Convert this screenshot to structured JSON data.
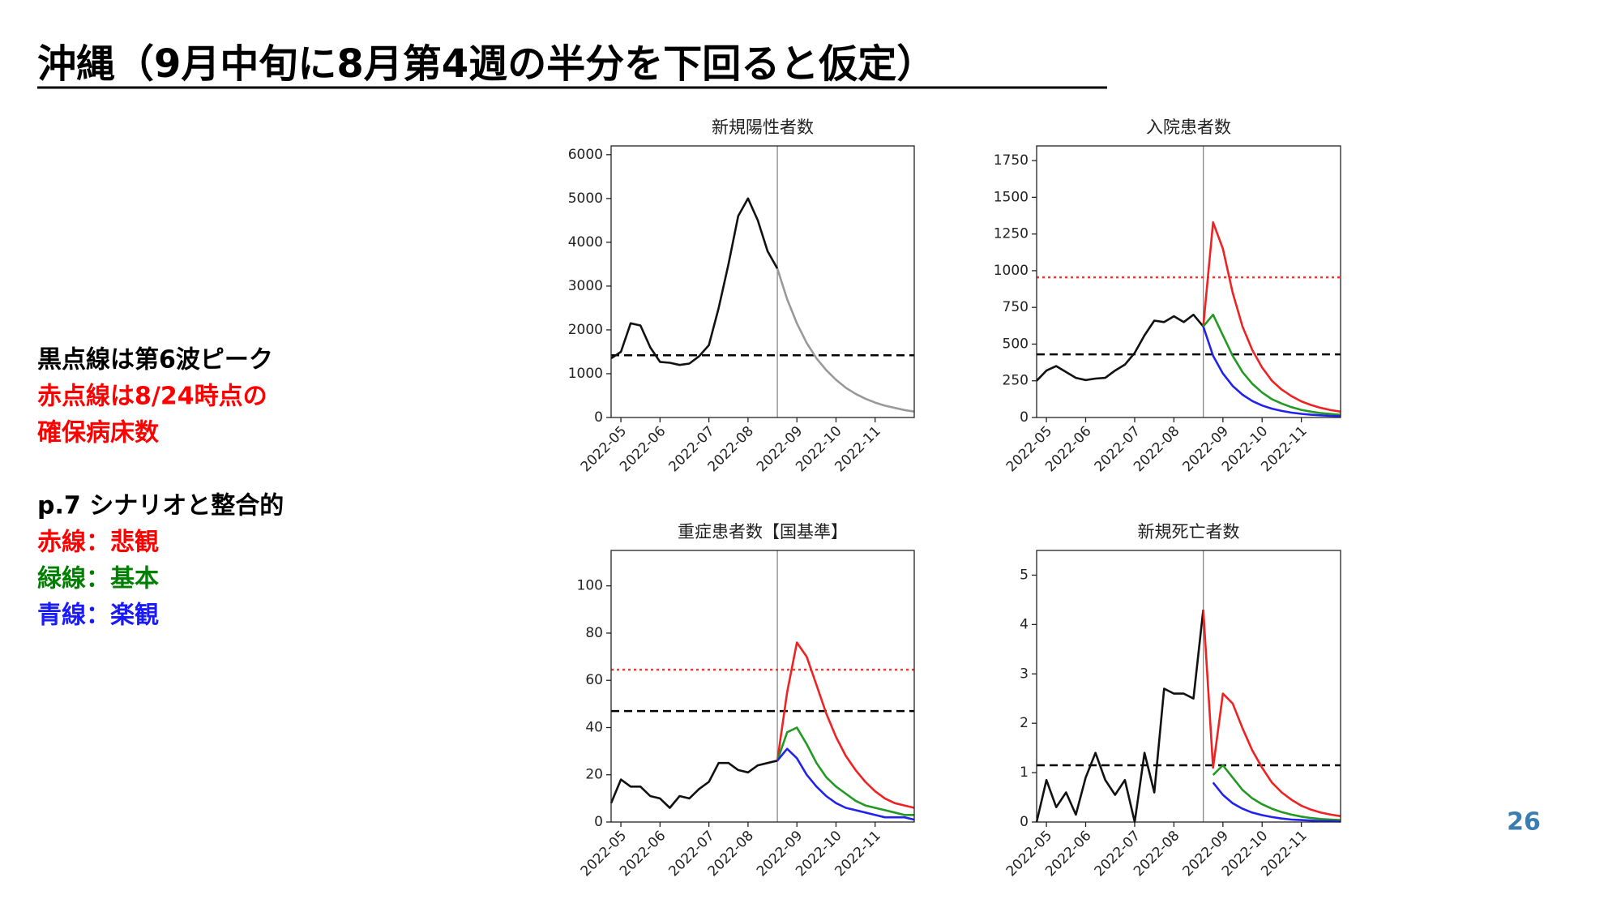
{
  "title": "沖縄（9月中旬に8月第4週の半分を下回ると仮定）",
  "notes": [
    {
      "text": "黒点線は第6波ピーク",
      "color": "#000000"
    },
    {
      "text": "赤点線は8/24時点の",
      "color": "#ff0000"
    },
    {
      "text": "確保病床数",
      "color": "#ff0000"
    },
    {
      "text": "p.7 シナリオと整合的",
      "color": "#000000"
    },
    {
      "text": "赤線：悲観",
      "color": "#ff0000"
    },
    {
      "text": "緑線：基本",
      "color": "#008000"
    },
    {
      "text": "青線：楽観",
      "color": "#1a1aff"
    }
  ],
  "page_number": "26",
  "chart_data": [
    {
      "type": "line",
      "title": "新規陽性者数",
      "categories": [
        null,
        "2022-05",
        null,
        null,
        null,
        "2022-06",
        null,
        null,
        null,
        null,
        "2022-07",
        null,
        null,
        null,
        "2022-08",
        null,
        null,
        null,
        null,
        "2022-09",
        null,
        null,
        null,
        "2022-10",
        null,
        null,
        null,
        "2022-11",
        null,
        null,
        null,
        null
      ],
      "ylim": [
        0,
        6200
      ],
      "yticks": [
        0,
        1000,
        2000,
        3000,
        4000,
        5000,
        6000
      ],
      "hlines": [
        {
          "value": 1420,
          "color": "#000000",
          "style": "dashed"
        }
      ],
      "series": [
        {
          "color": "#111111",
          "values": [
            1350,
            1500,
            2150,
            2100,
            1600,
            1270,
            1250,
            1200,
            1230,
            1400,
            1650,
            2500,
            3500,
            4600,
            5000,
            4500,
            3800,
            3400,
            null,
            null,
            null,
            null,
            null,
            null,
            null,
            null,
            null,
            null,
            null,
            null,
            null,
            null
          ]
        },
        {
          "color": "#999999",
          "values": [
            null,
            null,
            null,
            null,
            null,
            null,
            null,
            null,
            null,
            null,
            null,
            null,
            null,
            null,
            null,
            null,
            null,
            3400,
            2700,
            2150,
            1700,
            1350,
            1080,
            860,
            680,
            540,
            430,
            340,
            270,
            220,
            170,
            135
          ]
        }
      ]
    },
    {
      "type": "line",
      "title": "入院患者数",
      "categories": [
        null,
        "2022-05",
        null,
        null,
        null,
        "2022-06",
        null,
        null,
        null,
        null,
        "2022-07",
        null,
        null,
        null,
        "2022-08",
        null,
        null,
        null,
        null,
        "2022-09",
        null,
        null,
        null,
        "2022-10",
        null,
        null,
        null,
        "2022-11",
        null,
        null,
        null,
        null
      ],
      "ylim": [
        0,
        1850
      ],
      "yticks": [
        0,
        250,
        500,
        750,
        1000,
        1250,
        1500,
        1750
      ],
      "hlines": [
        {
          "value": 430,
          "color": "#000000",
          "style": "dashed"
        },
        {
          "value": 955,
          "color": "#ff3333",
          "style": "dotted"
        }
      ],
      "series": [
        {
          "color": "#111111",
          "values": [
            250,
            320,
            350,
            310,
            270,
            255,
            265,
            270,
            320,
            360,
            440,
            560,
            660,
            650,
            690,
            650,
            700,
            620,
            null,
            null,
            null,
            null,
            null,
            null,
            null,
            null,
            null,
            null,
            null,
            null,
            null,
            null
          ]
        },
        {
          "color": "#ee2222",
          "values": [
            null,
            null,
            null,
            null,
            null,
            null,
            null,
            null,
            null,
            null,
            null,
            null,
            null,
            null,
            null,
            null,
            null,
            620,
            1330,
            1150,
            850,
            620,
            460,
            340,
            250,
            190,
            145,
            110,
            85,
            65,
            50,
            40
          ]
        },
        {
          "color": "#229922",
          "values": [
            null,
            null,
            null,
            null,
            null,
            null,
            null,
            null,
            null,
            null,
            null,
            null,
            null,
            null,
            null,
            null,
            null,
            620,
            700,
            560,
            420,
            310,
            230,
            170,
            125,
            95,
            70,
            52,
            40,
            30,
            24,
            18
          ]
        },
        {
          "color": "#2222ee",
          "values": [
            null,
            null,
            null,
            null,
            null,
            null,
            null,
            null,
            null,
            null,
            null,
            null,
            null,
            null,
            null,
            null,
            null,
            620,
            420,
            300,
            215,
            155,
            112,
            82,
            60,
            45,
            33,
            25,
            19,
            15,
            11,
            9
          ]
        }
      ]
    },
    {
      "type": "line",
      "title": "重症患者数【国基準】",
      "categories": [
        null,
        "2022-05",
        null,
        null,
        null,
        "2022-06",
        null,
        null,
        null,
        null,
        "2022-07",
        null,
        null,
        null,
        "2022-08",
        null,
        null,
        null,
        null,
        "2022-09",
        null,
        null,
        null,
        "2022-10",
        null,
        null,
        null,
        "2022-11",
        null,
        null,
        null,
        null
      ],
      "ylim": [
        0,
        115
      ],
      "yticks": [
        0,
        20,
        40,
        60,
        80,
        100
      ],
      "hlines": [
        {
          "value": 47,
          "color": "#000000",
          "style": "dashed"
        },
        {
          "value": 64.5,
          "color": "#ff3333",
          "style": "dotted"
        }
      ],
      "series": [
        {
          "color": "#111111",
          "values": [
            8,
            18,
            15,
            15,
            11,
            10,
            6,
            11,
            10,
            14,
            17,
            25,
            25,
            22,
            21,
            24,
            25,
            26,
            null,
            null,
            null,
            null,
            null,
            null,
            null,
            null,
            null,
            null,
            null,
            null,
            null,
            null
          ]
        },
        {
          "color": "#ee2222",
          "values": [
            null,
            null,
            null,
            null,
            null,
            null,
            null,
            null,
            null,
            null,
            null,
            null,
            null,
            null,
            null,
            null,
            null,
            26,
            55,
            76,
            70,
            58,
            46,
            36,
            28,
            22,
            17,
            13,
            10,
            8,
            7,
            6
          ]
        },
        {
          "color": "#229922",
          "values": [
            null,
            null,
            null,
            null,
            null,
            null,
            null,
            null,
            null,
            null,
            null,
            null,
            null,
            null,
            null,
            null,
            null,
            26,
            38,
            40,
            33,
            25,
            19,
            15,
            12,
            9,
            7,
            6,
            5,
            4,
            3,
            3
          ]
        },
        {
          "color": "#2222ee",
          "values": [
            null,
            null,
            null,
            null,
            null,
            null,
            null,
            null,
            null,
            null,
            null,
            null,
            null,
            null,
            null,
            null,
            null,
            26,
            31,
            27,
            20,
            15,
            11,
            8,
            6,
            5,
            4,
            3,
            2,
            2,
            2,
            1
          ]
        }
      ]
    },
    {
      "type": "line",
      "title": "新規死亡者数",
      "categories": [
        null,
        "2022-05",
        null,
        null,
        null,
        "2022-06",
        null,
        null,
        null,
        null,
        "2022-07",
        null,
        null,
        null,
        "2022-08",
        null,
        null,
        null,
        null,
        "2022-09",
        null,
        null,
        null,
        "2022-10",
        null,
        null,
        null,
        "2022-11",
        null,
        null,
        null,
        null
      ],
      "ylim": [
        0,
        5.5
      ],
      "yticks": [
        0,
        1,
        2,
        3,
        4,
        5
      ],
      "hlines": [
        {
          "value": 1.15,
          "color": "#000000",
          "style": "dashed"
        }
      ],
      "series": [
        {
          "color": "#111111",
          "values": [
            0,
            0.85,
            0.3,
            0.6,
            0.15,
            0.9,
            1.4,
            0.85,
            0.55,
            0.85,
            0,
            1.4,
            0.6,
            2.7,
            2.6,
            2.6,
            2.5,
            4.3,
            null,
            null,
            null,
            null,
            null,
            null,
            null,
            null,
            null,
            null,
            null,
            null,
            null,
            null
          ]
        },
        {
          "color": "#ee2222",
          "values": [
            null,
            null,
            null,
            null,
            null,
            null,
            null,
            null,
            null,
            null,
            null,
            null,
            null,
            null,
            null,
            null,
            null,
            4.3,
            1.1,
            2.6,
            2.4,
            1.9,
            1.45,
            1.1,
            0.8,
            0.6,
            0.45,
            0.33,
            0.25,
            0.19,
            0.15,
            0.12
          ]
        },
        {
          "color": "#229922",
          "values": [
            null,
            null,
            null,
            null,
            null,
            null,
            null,
            null,
            null,
            null,
            null,
            null,
            null,
            null,
            null,
            null,
            null,
            null,
            0.95,
            1.15,
            0.9,
            0.65,
            0.48,
            0.36,
            0.27,
            0.2,
            0.15,
            0.11,
            0.08,
            0.06,
            0.05,
            0.04
          ]
        },
        {
          "color": "#2222ee",
          "values": [
            null,
            null,
            null,
            null,
            null,
            null,
            null,
            null,
            null,
            null,
            null,
            null,
            null,
            null,
            null,
            null,
            null,
            null,
            0.8,
            0.55,
            0.38,
            0.27,
            0.19,
            0.14,
            0.1,
            0.07,
            0.05,
            0.04,
            0.03,
            0.02,
            0.02,
            0.01
          ]
        }
      ]
    }
  ]
}
